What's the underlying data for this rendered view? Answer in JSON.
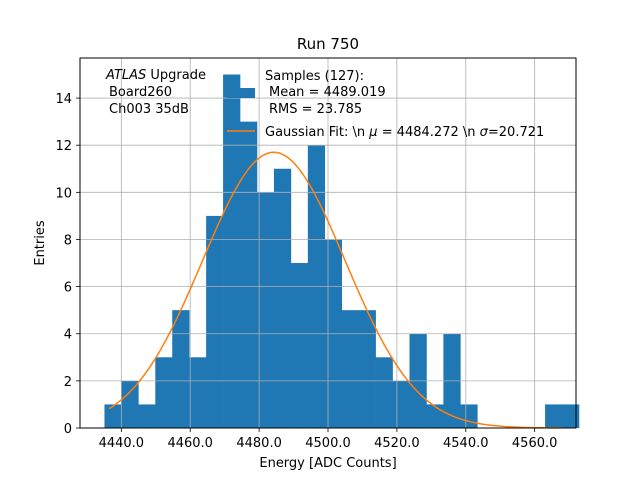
{
  "chart_data": {
    "type": "bar",
    "title": "Run 750",
    "xlabel": "Energy [ADC Counts]",
    "ylabel": "Entries",
    "xlim": [
      4428,
      4572
    ],
    "ylim": [
      0,
      15.7
    ],
    "grid": true,
    "xticks": [
      4440,
      4460,
      4480,
      4500,
      4520,
      4540,
      4560
    ],
    "xtick_labels": [
      "4440.0",
      "4460.0",
      "4480.0",
      "4500.0",
      "4520.0",
      "4540.0",
      "4560.0"
    ],
    "yticks": [
      0,
      2,
      4,
      6,
      8,
      10,
      12,
      14
    ],
    "ytick_labels": [
      "0",
      "2",
      "4",
      "6",
      "8",
      "10",
      "12",
      "14"
    ],
    "histogram": {
      "name": "Samples (127)",
      "color": "#1f77b4",
      "bin_start": 4435.1,
      "bin_width": 4.92,
      "counts": [
        1,
        2,
        1,
        3,
        5,
        3,
        9,
        15,
        13,
        10,
        11,
        7,
        12,
        8,
        5,
        5,
        3,
        2,
        4,
        1,
        4,
        1,
        0,
        0,
        0,
        0,
        1,
        1
      ]
    },
    "fit": {
      "name": "Gaussian Fit",
      "color": "#ff7f0e",
      "amplitude": 11.7,
      "mu": 4484.272,
      "sigma": 20.721,
      "x_range": [
        4436.5,
        4568
      ]
    },
    "annotations": {
      "experiment_italic": "ATLAS",
      "experiment_suffix": " Upgrade",
      "board": "Board260",
      "channel": "Ch003 35dB"
    },
    "legend": {
      "placement": "top-right",
      "samples_header": "Samples (127):",
      "samples_mean": "Mean = 4489.019",
      "samples_rms": "RMS = 23.785",
      "fit_label_prefix": "Gaussian Fit: \\n ",
      "fit_mu_symbol": "μ",
      "fit_label_mid": " = 4484.272 \\n ",
      "fit_sigma_symbol": "σ",
      "fit_label_suffix": "=20.721"
    }
  }
}
